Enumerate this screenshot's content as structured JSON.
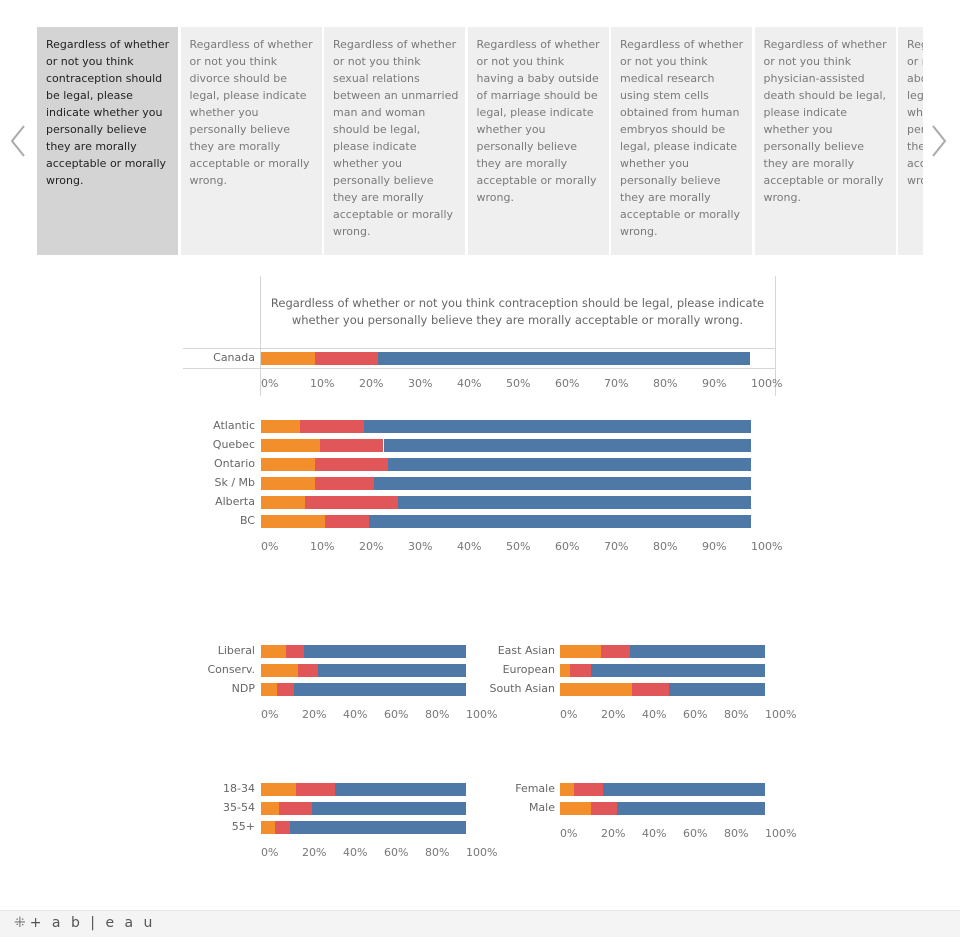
{
  "colors": {
    "orange": "#f28e2b",
    "red": "#e15759",
    "blue": "#4e79a7"
  },
  "questions": [
    "Regardless of whether or not you think contraception should be legal, please indicate whether you personally believe they are morally acceptable or morally wrong.",
    "Regardless of whether or not you think divorce should be legal, please indicate whether you personally believe they are morally acceptable or morally wrong.",
    "Regardless of whether or not you think sexual relations between an unmarried man and woman should be legal, please indicate whether you personally believe they are morally acceptable or morally wrong.",
    "Regardless of whether or not you think having a baby outside of marriage should be legal, please indicate whether you personally believe they are morally acceptable or morally wrong.",
    "Regardless of whether or not you think medical research using stem cells obtained from human embryos should be legal, please indicate whether you personally believe they are morally acceptable or morally wrong.",
    "Regardless of whether or not you think physician-assisted death should be legal, please indicate whether you personally believe they are morally acceptable or morally wrong.",
    "Regardless of whether or not you think abortion should be legal, please indicate whether you personally believe they are morally acceptable or morally wrong."
  ],
  "nav": {
    "prev_icon": "chevron-left-icon",
    "next_icon": "chevron-right-icon"
  },
  "footer": {
    "logo": "+ a b | e a u"
  },
  "chart_data": [
    {
      "type": "bar",
      "orientation": "horizontal",
      "stacked": true,
      "title": "Regardless of whether or not you think contraception should be legal, please indicate whether you personally believe they are morally acceptable or morally wrong.",
      "categories": [
        "Canada"
      ],
      "series": [
        {
          "values": [
            11
          ]
        },
        {
          "values": [
            13
          ]
        },
        {
          "values": [
            76
          ]
        }
      ],
      "xlim": [
        0,
        100
      ],
      "ticks": [
        "0%",
        "10%",
        "20%",
        "30%",
        "40%",
        "50%",
        "60%",
        "70%",
        "80%",
        "90%",
        "100%"
      ]
    },
    {
      "type": "bar",
      "orientation": "horizontal",
      "stacked": true,
      "categories": [
        "Atlantic",
        "Quebec",
        "Ontario",
        "Sk / Mb",
        "Alberta",
        "BC"
      ],
      "series": [
        {
          "values": [
            8,
            12,
            11,
            11,
            9,
            13
          ]
        },
        {
          "values": [
            13,
            13,
            15,
            12,
            19,
            9
          ]
        },
        {
          "values": [
            79,
            75,
            74,
            77,
            72,
            78
          ]
        }
      ],
      "xlim": [
        0,
        100
      ],
      "ticks": [
        "0%",
        "10%",
        "20%",
        "30%",
        "40%",
        "50%",
        "60%",
        "70%",
        "80%",
        "90%",
        "100%"
      ]
    },
    {
      "type": "bar",
      "orientation": "horizontal",
      "stacked": true,
      "categories": [
        "Liberal",
        "Conserv.",
        "NDP"
      ],
      "series": [
        {
          "values": [
            12,
            18,
            8
          ]
        },
        {
          "values": [
            9,
            10,
            8
          ]
        },
        {
          "values": [
            79,
            72,
            84
          ]
        }
      ],
      "xlim": [
        0,
        100
      ],
      "ticks": [
        "0%",
        "20%",
        "40%",
        "60%",
        "80%",
        "100%"
      ]
    },
    {
      "type": "bar",
      "orientation": "horizontal",
      "stacked": true,
      "categories": [
        "East Asian",
        "European",
        "South Asian"
      ],
      "series": [
        {
          "values": [
            20,
            5,
            35
          ]
        },
        {
          "values": [
            14,
            10,
            18
          ]
        },
        {
          "values": [
            66,
            85,
            47
          ]
        }
      ],
      "xlim": [
        0,
        100
      ],
      "ticks": [
        "0%",
        "20%",
        "40%",
        "60%",
        "80%",
        "100%"
      ]
    },
    {
      "type": "bar",
      "orientation": "horizontal",
      "stacked": true,
      "categories": [
        "18-34",
        "35-54",
        "55+"
      ],
      "series": [
        {
          "values": [
            17,
            9,
            7
          ]
        },
        {
          "values": [
            19,
            16,
            7
          ]
        },
        {
          "values": [
            64,
            75,
            86
          ]
        }
      ],
      "xlim": [
        0,
        100
      ],
      "ticks": [
        "0%",
        "20%",
        "40%",
        "60%",
        "80%",
        "100%"
      ]
    },
    {
      "type": "bar",
      "orientation": "horizontal",
      "stacked": true,
      "categories": [
        "Female",
        "Male"
      ],
      "series": [
        {
          "values": [
            7,
            15
          ]
        },
        {
          "values": [
            14,
            13
          ]
        },
        {
          "values": [
            79,
            72
          ]
        }
      ],
      "xlim": [
        0,
        100
      ],
      "ticks": [
        "0%",
        "20%",
        "40%",
        "60%",
        "80%",
        "100%"
      ]
    }
  ]
}
